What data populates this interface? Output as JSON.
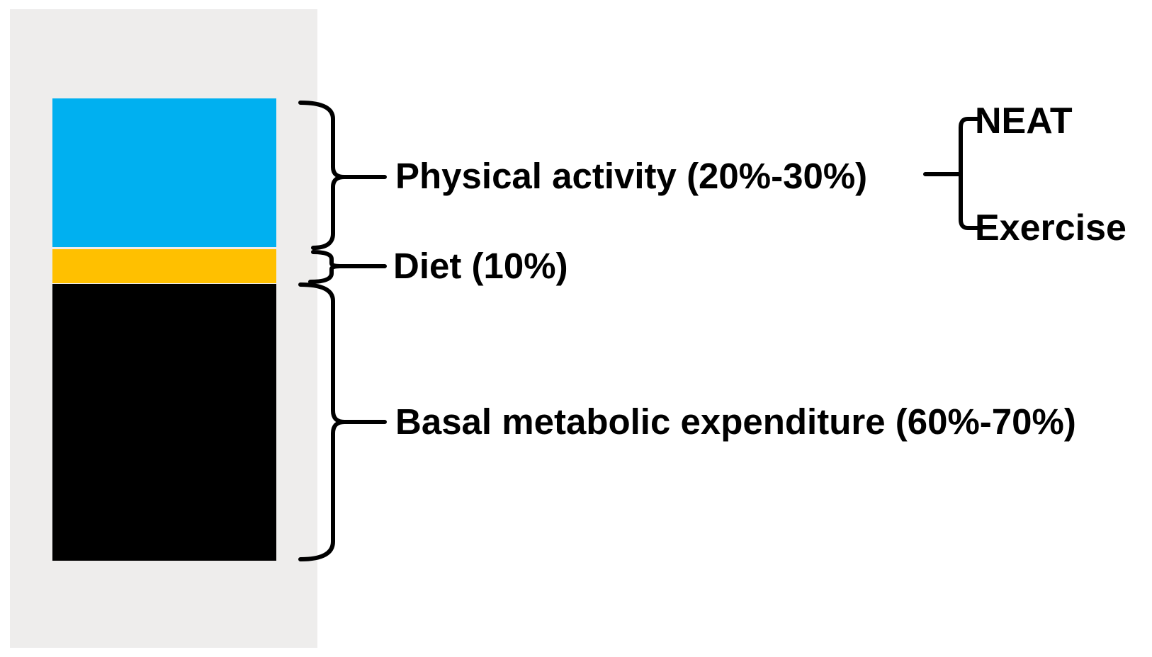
{
  "colors": {
    "background": "#ffffff",
    "panel": "#eeedec",
    "physical_activity": "#00b0f0",
    "diet": "#ffc000",
    "basal_metabolic": "#000000",
    "text": "#000000"
  },
  "segments": [
    {
      "label": "Physical activity (20%-30%)",
      "color_key": "physical_activity"
    },
    {
      "label": "Diet (10%)",
      "color_key": "diet"
    },
    {
      "label": "Basal metabolic expenditure (60%-70%)",
      "color_key": "basal_metabolic"
    }
  ],
  "physical_activity_components": [
    "NEAT",
    "Exercise"
  ]
}
